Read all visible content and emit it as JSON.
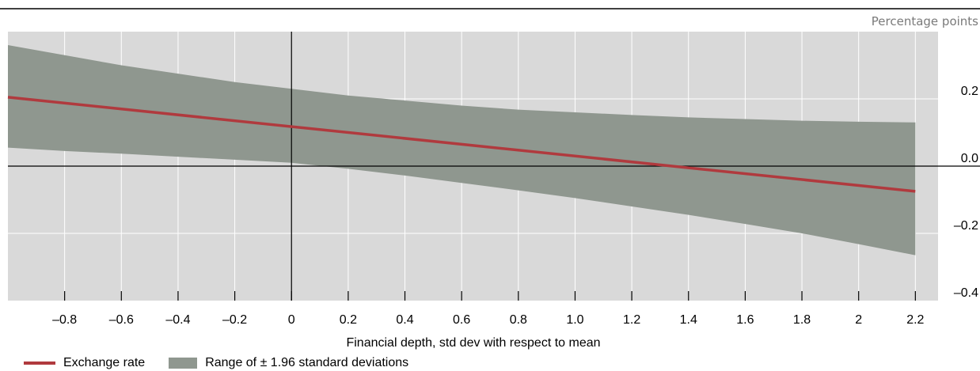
{
  "chart_data": {
    "type": "line",
    "unit_label": "Percentage points",
    "xlabel": "Financial depth, std dev with respect to mean",
    "xlim": [
      -1.0,
      2.28
    ],
    "ylim": [
      -0.4,
      0.4
    ],
    "x_ticks": [
      -0.8,
      -0.6,
      -0.4,
      -0.2,
      0,
      0.2,
      0.4,
      0.6,
      0.8,
      1.0,
      1.2,
      1.4,
      1.6,
      1.8,
      2,
      2.2
    ],
    "x_tick_labels": [
      "–0.8",
      "–0.6",
      "–0.4",
      "–0.2",
      "0",
      "0.2",
      "0.4",
      "0.6",
      "0.8",
      "1.0",
      "1.2",
      "1.4",
      "1.6",
      "1.8",
      "2",
      "2.2"
    ],
    "y_ticks": [
      0.2,
      0.0,
      -0.2,
      -0.4
    ],
    "y_tick_labels": [
      "0.2",
      "0.0",
      "–0.2",
      "–0.4"
    ],
    "grid": true,
    "series": [
      {
        "name": "Exchange rate",
        "kind": "line",
        "color": "#b03a3e",
        "x": [
          -1.0,
          2.2
        ],
        "y": [
          0.205,
          -0.075
        ]
      },
      {
        "name": "Range of ± 1.96 standard deviations",
        "kind": "band",
        "color": "#8f978f",
        "x": [
          -1.0,
          -0.8,
          -0.6,
          -0.4,
          -0.2,
          0.0,
          0.2,
          0.4,
          0.6,
          0.8,
          1.0,
          1.2,
          1.4,
          1.6,
          1.8,
          2.0,
          2.2
        ],
        "upper": [
          0.36,
          0.33,
          0.3,
          0.275,
          0.25,
          0.23,
          0.21,
          0.195,
          0.18,
          0.168,
          0.16,
          0.152,
          0.145,
          0.14,
          0.135,
          0.132,
          0.13
        ],
        "lower": [
          0.055,
          0.045,
          0.037,
          0.028,
          0.019,
          0.01,
          -0.008,
          -0.028,
          -0.05,
          -0.072,
          -0.095,
          -0.12,
          -0.145,
          -0.172,
          -0.2,
          -0.232,
          -0.265
        ]
      }
    ]
  },
  "colors": {
    "plot_background": "#d9d9d9",
    "grid": "#ffffff",
    "axis": "#000000"
  }
}
